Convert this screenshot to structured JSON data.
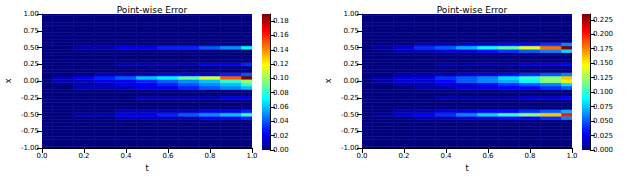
{
  "chart_data": [
    {
      "type": "heatmap",
      "title": "Point-wise Error",
      "x_label": "t",
      "y_label": "x",
      "x": [
        0,
        0.1,
        0.2,
        0.3,
        0.4,
        0.5,
        0.6,
        0.7,
        0.8,
        0.9,
        1.0
      ],
      "y": [
        -1,
        -0.95,
        -0.9,
        -0.85,
        -0.8,
        -0.75,
        -0.7,
        -0.65,
        -0.6,
        -0.55,
        -0.5,
        -0.45,
        -0.4,
        -0.35,
        -0.3,
        -0.25,
        -0.2,
        -0.15,
        -0.1,
        -0.05,
        0,
        0.05,
        0.1,
        0.15,
        0.2,
        0.25,
        0.3,
        0.35,
        0.4,
        0.45,
        0.5,
        0.55,
        0.6,
        0.65,
        0.7,
        0.75,
        0.8,
        0.85,
        0.9,
        0.95,
        1
      ],
      "values": [
        [
          0,
          0,
          0,
          0,
          0,
          0,
          0,
          0,
          0,
          0,
          0
        ],
        [
          0,
          0,
          0,
          0,
          0,
          0,
          0,
          0,
          0,
          0,
          0
        ],
        [
          0,
          0,
          0,
          0,
          0,
          0,
          0,
          0,
          0,
          0,
          0
        ],
        [
          0,
          0,
          0,
          0,
          0,
          0,
          0,
          0,
          0,
          0,
          0
        ],
        [
          0,
          0,
          0,
          0,
          0,
          0,
          0,
          0,
          0,
          0,
          0
        ],
        [
          0,
          0,
          0,
          0,
          0,
          0,
          0,
          0,
          0,
          0,
          0
        ],
        [
          0,
          0,
          0,
          0,
          0,
          0,
          0,
          0,
          0,
          0,
          0
        ],
        [
          0,
          0,
          0,
          0,
          0,
          0,
          0,
          0,
          0,
          0,
          0
        ],
        [
          0,
          0,
          0,
          0,
          0,
          0,
          0,
          0,
          0,
          0,
          0
        ],
        [
          0,
          0,
          0,
          0,
          0.01,
          0.01,
          0.01,
          0.01,
          0.02,
          0.02,
          0.03
        ],
        [
          0,
          0,
          0.01,
          0.01,
          0.02,
          0.02,
          0.03,
          0.04,
          0.05,
          0.06,
          0.08
        ],
        [
          0,
          0,
          0,
          0,
          0.01,
          0.01,
          0.01,
          0.01,
          0.02,
          0.02,
          0.03
        ],
        [
          0,
          0,
          0,
          0,
          0,
          0,
          0,
          0,
          0,
          0,
          0
        ],
        [
          0,
          0,
          0,
          0,
          0,
          0,
          0,
          0,
          0,
          0,
          0
        ],
        [
          0,
          0,
          0,
          0,
          0,
          0,
          0,
          0,
          0,
          0,
          0
        ],
        [
          0,
          0,
          0,
          0,
          0,
          0.01,
          0.01,
          0.01,
          0.01,
          0.02,
          0.02
        ],
        [
          0,
          0,
          0,
          0,
          0,
          0,
          0,
          0,
          0,
          0,
          0
        ],
        [
          0,
          0,
          0,
          0,
          0,
          0,
          0,
          0,
          0,
          0,
          0
        ],
        [
          0,
          0,
          0.01,
          0.01,
          0.01,
          0.02,
          0.02,
          0.03,
          0.04,
          0.05,
          0.06
        ],
        [
          0,
          0,
          0.01,
          0.01,
          0.02,
          0.02,
          0.03,
          0.04,
          0.05,
          0.06,
          0.08
        ],
        [
          0,
          0.01,
          0.01,
          0.02,
          0.02,
          0.03,
          0.04,
          0.05,
          0.06,
          0.08,
          0.1
        ],
        [
          0,
          0.01,
          0.02,
          0.03,
          0.04,
          0.06,
          0.07,
          0.09,
          0.11,
          0.15,
          0.19
        ],
        [
          0,
          0,
          0,
          0.01,
          0.01,
          0.01,
          0.02,
          0.02,
          0.02,
          0.03,
          0.04
        ],
        [
          0,
          0,
          0,
          0,
          0,
          0,
          0,
          0,
          0,
          0,
          0
        ],
        [
          0,
          0,
          0,
          0,
          0,
          0,
          0,
          0,
          0,
          0,
          0
        ],
        [
          0,
          0,
          0,
          0,
          0.01,
          0.01,
          0.01,
          0.01,
          0.02,
          0.02,
          0.03
        ],
        [
          0,
          0,
          0,
          0,
          0,
          0,
          0,
          0,
          0,
          0,
          0
        ],
        [
          0,
          0,
          0,
          0,
          0,
          0,
          0,
          0,
          0,
          0,
          0
        ],
        [
          0,
          0,
          0,
          0,
          0,
          0,
          0,
          0,
          0,
          0,
          0
        ],
        [
          0,
          0,
          0,
          0,
          0,
          0,
          0,
          0,
          0,
          0,
          0
        ],
        [
          0,
          0,
          0.01,
          0.01,
          0.02,
          0.02,
          0.03,
          0.03,
          0.04,
          0.05,
          0.07
        ],
        [
          0,
          0,
          0,
          0,
          0,
          0,
          0,
          0,
          0,
          0,
          0
        ],
        [
          0,
          0,
          0,
          0,
          0,
          0,
          0,
          0,
          0,
          0,
          0
        ],
        [
          0,
          0,
          0,
          0,
          0,
          0,
          0,
          0,
          0,
          0,
          0
        ],
        [
          0,
          0,
          0,
          0,
          0,
          0,
          0,
          0,
          0,
          0,
          0
        ],
        [
          0,
          0,
          0,
          0,
          0,
          0,
          0,
          0,
          0,
          0,
          0
        ],
        [
          0,
          0,
          0,
          0,
          0,
          0,
          0,
          0,
          0,
          0,
          0
        ],
        [
          0,
          0,
          0,
          0,
          0,
          0,
          0,
          0,
          0,
          0,
          0
        ],
        [
          0,
          0,
          0,
          0,
          0,
          0,
          0,
          0,
          0,
          0,
          0
        ],
        [
          0,
          0,
          0,
          0,
          0,
          0,
          0,
          0,
          0,
          0,
          0
        ],
        [
          0,
          0,
          0,
          0,
          0,
          0,
          0,
          0,
          0,
          0,
          0
        ]
      ],
      "xlim": [
        0,
        1
      ],
      "ylim": [
        -1,
        1
      ],
      "xticks": [
        {
          "value": 0,
          "label": "0.0"
        },
        {
          "value": 0.2,
          "label": "0.2"
        },
        {
          "value": 0.4,
          "label": "0.4"
        },
        {
          "value": 0.6,
          "label": "0.6"
        },
        {
          "value": 0.8,
          "label": "0.8"
        },
        {
          "value": 1,
          "label": "1.0"
        }
      ],
      "yticks": [
        {
          "value": -1,
          "label": "-1.00"
        },
        {
          "value": -0.75,
          "label": "-0.75"
        },
        {
          "value": -0.5,
          "label": "-0.50"
        },
        {
          "value": -0.25,
          "label": "-0.25"
        },
        {
          "value": 0,
          "label": "0.00"
        },
        {
          "value": 0.25,
          "label": "0.25"
        },
        {
          "value": 0.5,
          "label": "0.50"
        },
        {
          "value": 0.75,
          "label": "0.75"
        },
        {
          "value": 1,
          "label": "1.00"
        }
      ],
      "colorbar_range": [
        0,
        0.19
      ],
      "colorbar_ticks": [
        {
          "value": 0,
          "label": "0.00"
        },
        {
          "value": 0.02,
          "label": "0.02"
        },
        {
          "value": 0.04,
          "label": "0.04"
        },
        {
          "value": 0.06,
          "label": "0.06"
        },
        {
          "value": 0.08,
          "label": "0.08"
        },
        {
          "value": 0.1,
          "label": "0.10"
        },
        {
          "value": 0.12,
          "label": "0.12"
        },
        {
          "value": 0.14,
          "label": "0.14"
        },
        {
          "value": 0.16,
          "label": "0.16"
        },
        {
          "value": 0.18,
          "label": "0.18"
        }
      ]
    },
    {
      "type": "heatmap",
      "title": "Point-wise Error",
      "x_label": "t",
      "y_label": "x",
      "x": [
        0,
        0.1,
        0.2,
        0.3,
        0.4,
        0.5,
        0.6,
        0.7,
        0.8,
        0.9,
        1.0
      ],
      "y": [
        -1,
        -0.95,
        -0.9,
        -0.85,
        -0.8,
        -0.75,
        -0.7,
        -0.65,
        -0.6,
        -0.55,
        -0.5,
        -0.45,
        -0.4,
        -0.35,
        -0.3,
        -0.25,
        -0.2,
        -0.15,
        -0.1,
        -0.05,
        0,
        0.05,
        0.1,
        0.15,
        0.2,
        0.25,
        0.3,
        0.35,
        0.4,
        0.45,
        0.5,
        0.55,
        0.6,
        0.65,
        0.7,
        0.75,
        0.8,
        0.85,
        0.9,
        0.95,
        1
      ],
      "values": [
        [
          0,
          0,
          0,
          0,
          0,
          0,
          0,
          0,
          0,
          0,
          0
        ],
        [
          0,
          0,
          0,
          0,
          0,
          0,
          0,
          0,
          0,
          0,
          0
        ],
        [
          0,
          0,
          0,
          0,
          0,
          0,
          0,
          0,
          0,
          0,
          0
        ],
        [
          0,
          0,
          0,
          0,
          0,
          0,
          0,
          0,
          0,
          0,
          0
        ],
        [
          0,
          0,
          0,
          0,
          0,
          0,
          0,
          0,
          0,
          0,
          0
        ],
        [
          0,
          0,
          0,
          0,
          0,
          0,
          0,
          0,
          0,
          0,
          0
        ],
        [
          0,
          0,
          0,
          0,
          0,
          0,
          0,
          0,
          0,
          0,
          0
        ],
        [
          0,
          0,
          0,
          0,
          0,
          0,
          0,
          0,
          0,
          0,
          0
        ],
        [
          0,
          0,
          0,
          0,
          0,
          0,
          0,
          0,
          0,
          0,
          0
        ],
        [
          0,
          0,
          0,
          0.01,
          0.01,
          0.02,
          0.02,
          0.03,
          0.03,
          0.04,
          0.06
        ],
        [
          0,
          0.01,
          0.02,
          0.03,
          0.04,
          0.06,
          0.08,
          0.1,
          0.12,
          0.16,
          0.2
        ],
        [
          0,
          0,
          0.01,
          0.01,
          0.02,
          0.02,
          0.03,
          0.03,
          0.04,
          0.05,
          0.07
        ],
        [
          0,
          0,
          0,
          0,
          0,
          0,
          0,
          0,
          0,
          0,
          0
        ],
        [
          0,
          0,
          0,
          0,
          0,
          0,
          0,
          0,
          0,
          0,
          0
        ],
        [
          0,
          0,
          0,
          0,
          0,
          0,
          0,
          0,
          0,
          0,
          0
        ],
        [
          0,
          0,
          0,
          0,
          0.01,
          0.01,
          0.01,
          0.01,
          0.02,
          0.02,
          0.03
        ],
        [
          0,
          0,
          0,
          0,
          0,
          0,
          0,
          0,
          0,
          0,
          0
        ],
        [
          0,
          0,
          0,
          0,
          0,
          0,
          0,
          0,
          0,
          0,
          0
        ],
        [
          0,
          0,
          0,
          0.01,
          0.01,
          0.02,
          0.02,
          0.03,
          0.03,
          0.04,
          0.05
        ],
        [
          0,
          0,
          0.01,
          0.01,
          0.02,
          0.02,
          0.03,
          0.04,
          0.05,
          0.06,
          0.08
        ],
        [
          0,
          0.01,
          0.02,
          0.02,
          0.03,
          0.05,
          0.06,
          0.07,
          0.09,
          0.12,
          0.15
        ],
        [
          0,
          0.01,
          0.02,
          0.02,
          0.04,
          0.05,
          0.06,
          0.08,
          0.1,
          0.12,
          0.16
        ],
        [
          0,
          0,
          0.01,
          0.01,
          0.01,
          0.02,
          0.02,
          0.03,
          0.04,
          0.05,
          0.06
        ],
        [
          0,
          0,
          0,
          0,
          0,
          0,
          0,
          0,
          0,
          0,
          0
        ],
        [
          0,
          0,
          0,
          0,
          0,
          0,
          0,
          0,
          0,
          0,
          0
        ],
        [
          0,
          0,
          0,
          0,
          0.01,
          0.01,
          0.01,
          0.01,
          0.02,
          0.02,
          0.03
        ],
        [
          0,
          0,
          0,
          0,
          0,
          0,
          0,
          0,
          0,
          0,
          0
        ],
        [
          0,
          0,
          0,
          0,
          0,
          0,
          0,
          0,
          0,
          0,
          0
        ],
        [
          0,
          0,
          0,
          0,
          0,
          0,
          0,
          0,
          0,
          0,
          0
        ],
        [
          0,
          0,
          0.01,
          0.01,
          0.02,
          0.02,
          0.03,
          0.04,
          0.05,
          0.06,
          0.08
        ],
        [
          0,
          0.01,
          0.02,
          0.04,
          0.05,
          0.07,
          0.09,
          0.11,
          0.14,
          0.18,
          0.235
        ],
        [
          0,
          0,
          0,
          0.01,
          0.01,
          0.02,
          0.02,
          0.03,
          0.03,
          0.04,
          0.06
        ],
        [
          0,
          0,
          0,
          0,
          0,
          0,
          0,
          0,
          0,
          0,
          0
        ],
        [
          0,
          0,
          0,
          0,
          0,
          0,
          0,
          0,
          0,
          0,
          0
        ],
        [
          0,
          0,
          0,
          0,
          0,
          0,
          0,
          0,
          0,
          0,
          0
        ],
        [
          0,
          0,
          0,
          0,
          0,
          0,
          0,
          0,
          0,
          0,
          0
        ],
        [
          0,
          0,
          0,
          0,
          0,
          0,
          0,
          0,
          0,
          0,
          0
        ],
        [
          0,
          0,
          0,
          0,
          0,
          0,
          0,
          0,
          0,
          0,
          0
        ],
        [
          0,
          0,
          0,
          0,
          0,
          0,
          0,
          0,
          0,
          0,
          0
        ],
        [
          0,
          0,
          0,
          0,
          0,
          0,
          0,
          0,
          0,
          0,
          0
        ],
        [
          0,
          0,
          0,
          0,
          0,
          0,
          0,
          0,
          0,
          0,
          0
        ]
      ],
      "xlim": [
        0,
        1
      ],
      "ylim": [
        -1,
        1
      ],
      "xticks": [
        {
          "value": 0,
          "label": "0.0"
        },
        {
          "value": 0.2,
          "label": "0.2"
        },
        {
          "value": 0.4,
          "label": "0.4"
        },
        {
          "value": 0.6,
          "label": "0.6"
        },
        {
          "value": 0.8,
          "label": "0.8"
        },
        {
          "value": 1,
          "label": "1.0"
        }
      ],
      "yticks": [
        {
          "value": -1,
          "label": "-1.00"
        },
        {
          "value": -0.75,
          "label": "-0.75"
        },
        {
          "value": -0.5,
          "label": "-0.50"
        },
        {
          "value": -0.25,
          "label": "-0.25"
        },
        {
          "value": 0,
          "label": "0.00"
        },
        {
          "value": 0.25,
          "label": "0.25"
        },
        {
          "value": 0.5,
          "label": "0.50"
        },
        {
          "value": 0.75,
          "label": "0.75"
        },
        {
          "value": 1,
          "label": "1.00"
        }
      ],
      "colorbar_range": [
        0,
        0.235
      ],
      "colorbar_ticks": [
        {
          "value": 0,
          "label": "0.000"
        },
        {
          "value": 0.025,
          "label": "0.025"
        },
        {
          "value": 0.05,
          "label": "0.050"
        },
        {
          "value": 0.075,
          "label": "0.075"
        },
        {
          "value": 0.1,
          "label": "0.100"
        },
        {
          "value": 0.125,
          "label": "0.125"
        },
        {
          "value": 0.15,
          "label": "0.150"
        },
        {
          "value": 0.175,
          "label": "0.175"
        },
        {
          "value": 0.2,
          "label": "0.200"
        },
        {
          "value": 0.225,
          "label": "0.225"
        }
      ]
    }
  ]
}
